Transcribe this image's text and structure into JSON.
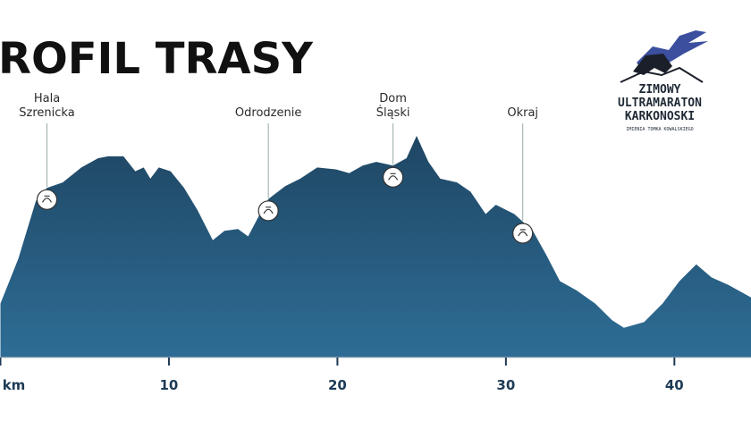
{
  "chart_data": {
    "type": "area",
    "title": "ROFIL TRASY",
    "x": [
      0,
      1.06,
      2.1,
      2.76,
      3.7,
      4.8,
      5.8,
      6.4,
      7.3,
      8.0,
      8.5,
      8.9,
      9.4,
      10.1,
      10.9,
      11.7,
      12.6,
      13.3,
      14.1,
      14.7,
      15.4,
      15.9,
      16.9,
      17.8,
      18.8,
      19.9,
      20.7,
      21.5,
      22.3,
      23.3,
      24.1,
      24.7,
      25.4,
      26.1,
      27.1,
      27.9,
      28.8,
      29.4,
      30.5,
      31.6,
      32.4,
      33.2,
      34.2,
      35.3,
      36.3,
      37.0,
      38.2,
      39.3,
      40.3,
      41.3,
      42.2,
      43.2,
      44.6
    ],
    "series": [
      {
        "color": "#245173",
        "values": [
          700,
          940,
          1250,
          1320,
          1350,
          1430,
          1480,
          1490,
          1490,
          1410,
          1430,
          1370,
          1430,
          1410,
          1320,
          1200,
          1040,
          1090,
          1100,
          1060,
          1180,
          1260,
          1330,
          1370,
          1430,
          1420,
          1400,
          1440,
          1460,
          1440,
          1480,
          1600,
          1460,
          1370,
          1350,
          1300,
          1180,
          1230,
          1180,
          1090,
          960,
          820,
          770,
          700,
          610,
          570,
          600,
          700,
          820,
          910,
          840,
          800,
          730
        ]
      }
    ],
    "xlim": [
      0,
      44.6
    ],
    "ylim": [
      410,
      1620
    ],
    "xticks": [
      {
        "value": 0,
        "label": "km"
      },
      10,
      20,
      30,
      40
    ],
    "annotations": [
      {
        "text": [
          "Hala",
          "Szrenicka"
        ],
        "x": 2.76
      },
      {
        "text": [
          "Odrodzenie"
        ],
        "x": 15.9
      },
      {
        "text": [
          "Dom",
          "Śląski"
        ],
        "x": 23.3
      },
      {
        "text": [
          "Okraj"
        ],
        "x": 31.0
      }
    ],
    "logo": {
      "lines": [
        "ZIMOWY",
        "ULTRAMARATON",
        "KARKONOSKI"
      ],
      "subtitle": "IMIENIA TOMKA KOWALSKIEGO"
    }
  }
}
